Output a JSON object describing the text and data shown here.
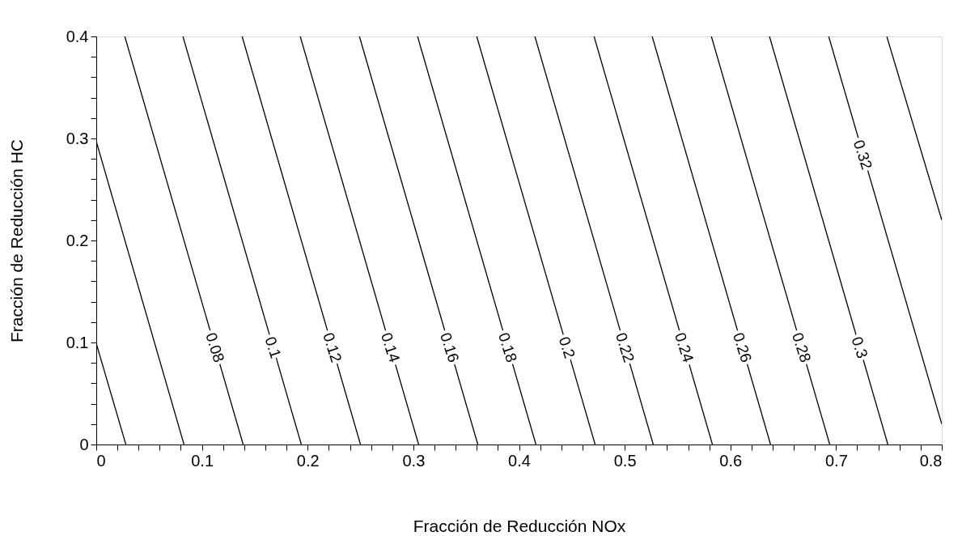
{
  "chart_data": {
    "type": "line",
    "xlabel": "Fracción de Reducción NOx",
    "ylabel": "Fracción de Reducción HC",
    "xlim": [
      0,
      0.8
    ],
    "ylim": [
      0,
      0.4
    ],
    "xticks": [
      0,
      {
        "value": 0.02,
        "label": null
      },
      {
        "value": 0.04,
        "label": null
      },
      {
        "value": 0.06,
        "label": null
      },
      {
        "value": 0.08,
        "label": null
      },
      0.1,
      {
        "value": 0.12,
        "label": null
      },
      {
        "value": 0.14,
        "label": null
      },
      {
        "value": 0.16,
        "label": null
      },
      {
        "value": 0.18,
        "label": null
      },
      0.2,
      {
        "value": 0.22,
        "label": null
      },
      {
        "value": 0.24,
        "label": null
      },
      {
        "value": 0.26,
        "label": null
      },
      {
        "value": 0.28,
        "label": null
      },
      0.3,
      {
        "value": 0.32,
        "label": null
      },
      {
        "value": 0.34,
        "label": null
      },
      {
        "value": 0.36,
        "label": null
      },
      {
        "value": 0.38,
        "label": null
      },
      0.4,
      {
        "value": 0.42,
        "label": null
      },
      {
        "value": 0.44,
        "label": null
      },
      {
        "value": 0.46,
        "label": null
      },
      {
        "value": 0.48,
        "label": null
      },
      0.5,
      {
        "value": 0.52,
        "label": null
      },
      {
        "value": 0.54,
        "label": null
      },
      {
        "value": 0.56,
        "label": null
      },
      {
        "value": 0.58,
        "label": null
      },
      0.6,
      {
        "value": 0.62,
        "label": null
      },
      {
        "value": 0.64,
        "label": null
      },
      {
        "value": 0.66,
        "label": null
      },
      {
        "value": 0.68,
        "label": null
      },
      0.7,
      {
        "value": 0.72,
        "label": null
      },
      {
        "value": 0.74,
        "label": null
      },
      {
        "value": 0.76,
        "label": null
      },
      {
        "value": 0.78,
        "label": null
      },
      0.8
    ],
    "yticks": [
      0,
      {
        "value": 0.02,
        "label": null
      },
      {
        "value": 0.04,
        "label": null
      },
      {
        "value": 0.06,
        "label": null
      },
      {
        "value": 0.08,
        "label": null
      },
      0.1,
      {
        "value": 0.12,
        "label": null
      },
      {
        "value": 0.14,
        "label": null
      },
      {
        "value": 0.16,
        "label": null
      },
      {
        "value": 0.18,
        "label": null
      },
      0.2,
      {
        "value": 0.22,
        "label": null
      },
      {
        "value": 0.24,
        "label": null
      },
      {
        "value": 0.26,
        "label": null
      },
      {
        "value": 0.28,
        "label": null
      },
      0.3,
      {
        "value": 0.32,
        "label": null
      },
      {
        "value": 0.34,
        "label": null
      },
      {
        "value": 0.36,
        "label": null
      },
      {
        "value": 0.38,
        "label": null
      },
      0.4
    ],
    "grid": false,
    "marker": "none",
    "line_style": "solid",
    "legend": false,
    "series": [
      {
        "color": "#000000",
        "x": [
          0,
          0.028
        ],
        "values": [
          0.099,
          0
        ]
      },
      {
        "color": "#000000",
        "x": [
          0,
          0.083
        ],
        "values": [
          0.297,
          0
        ]
      },
      {
        "color": "#000000",
        "x": [
          0.027,
          0.139
        ],
        "values": [
          0.4,
          0
        ]
      },
      {
        "color": "#000000",
        "x": [
          0.082,
          0.194
        ],
        "values": [
          0.4,
          0
        ]
      },
      {
        "color": "#000000",
        "x": [
          0.138,
          0.25
        ],
        "values": [
          0.4,
          0
        ]
      },
      {
        "color": "#000000",
        "x": [
          0.193,
          0.305
        ],
        "values": [
          0.4,
          0
        ]
      },
      {
        "color": "#000000",
        "x": [
          0.249,
          0.361
        ],
        "values": [
          0.4,
          0
        ]
      },
      {
        "color": "#000000",
        "x": [
          0.304,
          0.416
        ],
        "values": [
          0.4,
          0
        ]
      },
      {
        "color": "#000000",
        "x": [
          0.36,
          0.472
        ],
        "values": [
          0.4,
          0
        ]
      },
      {
        "color": "#000000",
        "x": [
          0.415,
          0.527
        ],
        "values": [
          0.4,
          0
        ]
      },
      {
        "color": "#000000",
        "x": [
          0.471,
          0.583
        ],
        "values": [
          0.4,
          0
        ]
      },
      {
        "color": "#000000",
        "x": [
          0.526,
          0.638
        ],
        "values": [
          0.4,
          0
        ]
      },
      {
        "color": "#000000",
        "x": [
          0.582,
          0.694
        ],
        "values": [
          0.4,
          0
        ]
      },
      {
        "color": "#000000",
        "x": [
          0.637,
          0.749
        ],
        "values": [
          0.4,
          0
        ]
      },
      {
        "color": "#000000",
        "x": [
          0.693,
          0.8
        ],
        "values": [
          0.4,
          0.02
        ]
      },
      {
        "color": "#000000",
        "x": [
          0.748,
          0.8
        ],
        "values": [
          0.4,
          0.22
        ]
      }
    ],
    "annotations": [
      {
        "text": "0.08",
        "x": 0.112,
        "y": 0.095
      },
      {
        "text": "0.1",
        "x": 0.167,
        "y": 0.095
      },
      {
        "text": "0.12",
        "x": 0.223,
        "y": 0.095
      },
      {
        "text": "0.14",
        "x": 0.278,
        "y": 0.095
      },
      {
        "text": "0.16",
        "x": 0.334,
        "y": 0.095
      },
      {
        "text": "0.18",
        "x": 0.389,
        "y": 0.095
      },
      {
        "text": "0.2",
        "x": 0.445,
        "y": 0.095
      },
      {
        "text": "0.22",
        "x": 0.5,
        "y": 0.095
      },
      {
        "text": "0.24",
        "x": 0.556,
        "y": 0.095
      },
      {
        "text": "0.26",
        "x": 0.611,
        "y": 0.095
      },
      {
        "text": "0.28",
        "x": 0.667,
        "y": 0.095
      },
      {
        "text": "0.3",
        "x": 0.722,
        "y": 0.095
      },
      {
        "text": "0.32",
        "x": 0.725,
        "y": 0.284
      }
    ]
  }
}
